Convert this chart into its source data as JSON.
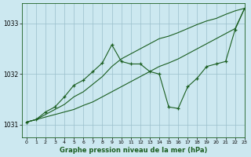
{
  "title": "Graphe pression niveau de la mer (hPa)",
  "bg_color": "#cce8f0",
  "grid_color": "#9bbfcc",
  "line_color": "#1a5e20",
  "xlim": [
    -0.5,
    23
  ],
  "ylim": [
    1030.75,
    1033.4
  ],
  "yticks": [
    1031,
    1032,
    1033
  ],
  "xticks": [
    0,
    1,
    2,
    3,
    4,
    5,
    6,
    7,
    8,
    9,
    10,
    11,
    12,
    13,
    14,
    15,
    16,
    17,
    18,
    19,
    20,
    21,
    22,
    23
  ],
  "series": [
    {
      "x": [
        0,
        1,
        2,
        3,
        4,
        5,
        6,
        7,
        8,
        9,
        10,
        11,
        12,
        13,
        14,
        15,
        16,
        17,
        18,
        19,
        20,
        21,
        22,
        23
      ],
      "y": [
        1031.05,
        1031.1,
        1031.15,
        1031.2,
        1031.25,
        1031.3,
        1031.38,
        1031.45,
        1031.55,
        1031.65,
        1031.75,
        1031.85,
        1031.95,
        1032.05,
        1032.15,
        1032.22,
        1032.3,
        1032.4,
        1032.5,
        1032.6,
        1032.7,
        1032.8,
        1032.9,
        1033.3
      ],
      "marker": false
    },
    {
      "x": [
        0,
        1,
        2,
        3,
        4,
        5,
        6,
        7,
        8,
        9,
        10,
        11,
        12,
        13,
        14,
        15,
        16,
        17,
        18,
        19,
        20,
        21,
        22,
        23
      ],
      "y": [
        1031.05,
        1031.1,
        1031.2,
        1031.3,
        1031.4,
        1031.55,
        1031.65,
        1031.8,
        1031.95,
        1032.15,
        1032.3,
        1032.4,
        1032.5,
        1032.6,
        1032.7,
        1032.75,
        1032.82,
        1032.9,
        1032.98,
        1033.05,
        1033.1,
        1033.18,
        1033.25,
        1033.3
      ],
      "marker": false
    },
    {
      "x": [
        0,
        1,
        2,
        3,
        4,
        5,
        6,
        7,
        8,
        9,
        10,
        11,
        12,
        13,
        14,
        15,
        16,
        17,
        18,
        19,
        20,
        21,
        22,
        23
      ],
      "y": [
        1031.05,
        1031.1,
        1031.25,
        1031.35,
        1031.55,
        1031.78,
        1031.88,
        1032.05,
        1032.22,
        1032.58,
        1032.25,
        1032.2,
        1032.2,
        1032.05,
        1032.0,
        1031.35,
        1031.32,
        1031.75,
        1031.92,
        1032.15,
        1032.2,
        1032.25,
        1032.88,
        1033.3
      ],
      "marker": true
    }
  ]
}
